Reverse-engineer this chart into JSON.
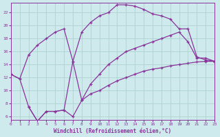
{
  "xlabel": "Windchill (Refroidissement éolien,°C)",
  "bg_color": "#ceeaec",
  "grid_color": "#aacccc",
  "line_color": "#883399",
  "xlim": [
    0,
    23
  ],
  "ylim": [
    5.5,
    23.5
  ],
  "xticks": [
    0,
    1,
    2,
    3,
    4,
    5,
    6,
    7,
    8,
    9,
    10,
    11,
    12,
    13,
    14,
    15,
    16,
    17,
    18,
    19,
    20,
    21,
    22,
    23
  ],
  "yticks": [
    6,
    8,
    10,
    12,
    14,
    16,
    18,
    20,
    22
  ],
  "line1_x": [
    0,
    1,
    2,
    3,
    4,
    5,
    6,
    7,
    8,
    9,
    10,
    11,
    12,
    13,
    14,
    15,
    16,
    17,
    18,
    19,
    20,
    21,
    22,
    23
  ],
  "line1_y": [
    12.5,
    11.8,
    15.5,
    17.0,
    18.0,
    19.0,
    19.5,
    14.5,
    19.0,
    20.5,
    21.5,
    22.0,
    23.2,
    23.2,
    23.0,
    22.5,
    21.8,
    21.5,
    21.0,
    19.5,
    19.5,
    15.2,
    14.7,
    14.5
  ],
  "line2_x": [
    2,
    3,
    4,
    5,
    6,
    7,
    8,
    9,
    10,
    11,
    12,
    13,
    14,
    15,
    16,
    17,
    18,
    19,
    20,
    21,
    22,
    23
  ],
  "line2_y": [
    7.5,
    5.3,
    6.8,
    6.8,
    7.0,
    6.0,
    8.5,
    9.5,
    10.0,
    10.8,
    11.5,
    12.0,
    12.5,
    13.0,
    13.3,
    13.5,
    13.8,
    14.0,
    14.2,
    14.4,
    14.5,
    14.5
  ],
  "line3_x": [
    0,
    1,
    2,
    3,
    4,
    5,
    6,
    7,
    8,
    9,
    10,
    11,
    12,
    13,
    14,
    15,
    16,
    17,
    18,
    19,
    20,
    21,
    22,
    23
  ],
  "line3_y": [
    12.5,
    11.8,
    7.5,
    5.3,
    6.8,
    6.8,
    7.0,
    14.5,
    8.5,
    11.0,
    12.5,
    14.0,
    15.0,
    16.0,
    16.5,
    17.0,
    17.5,
    18.0,
    18.5,
    19.0,
    17.5,
    15.0,
    15.0,
    14.5
  ]
}
